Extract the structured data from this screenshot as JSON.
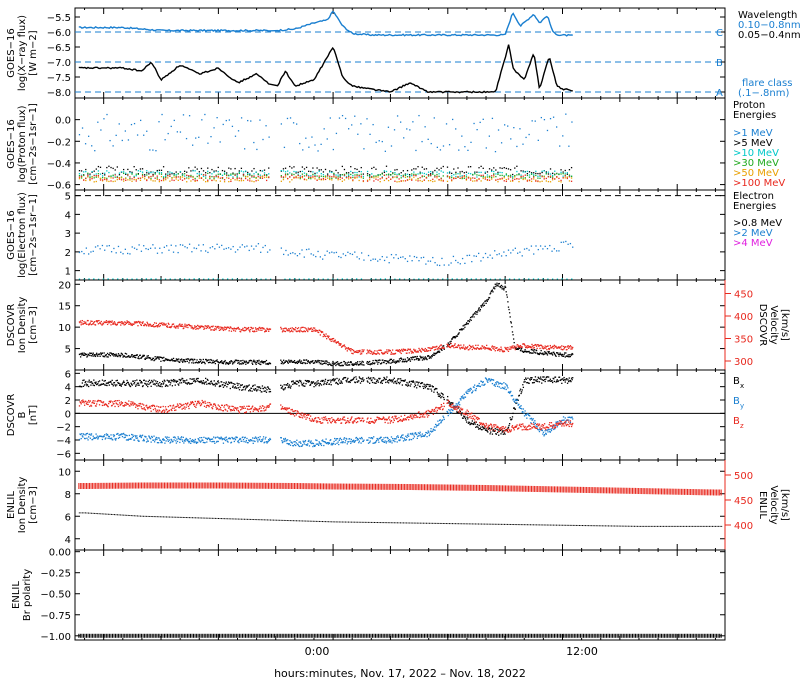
{
  "colors": {
    "black": "#000000",
    "blue": "#1a7fd0",
    "cyan": "#00c8c8",
    "green": "#1faa1f",
    "orange": "#e8a000",
    "red": "#e8281e",
    "magenta": "#e020e0",
    "dashed_blue": "#1a7fd0"
  },
  "footer": {
    "xlabel": "hours:minutes, Nov. 17, 2022 – Nov. 18, 2022"
  },
  "time_axis": {
    "ticks": [
      "0:00",
      "12:00"
    ]
  },
  "chart_data": [
    {
      "type": "line",
      "id": "xray",
      "ylabel_lines": [
        "GOES−16",
        "log(X−ray flux)",
        "[W m−2]"
      ],
      "ylim": [
        -8.2,
        -5.2
      ],
      "ytick_labels": [
        "−5.5",
        "−6.0",
        "−6.5",
        "−7.0",
        "−7.5",
        "−8.0"
      ],
      "ytick_values": [
        -5.5,
        -6.0,
        -6.5,
        -7.0,
        -7.5,
        -8.0
      ],
      "legend_title": "Wavelength",
      "series": [
        {
          "name": "0.10−0.8nm",
          "color": "blue",
          "x": [
            -11.0,
            -9.0,
            -7.0,
            -5.0,
            -3.0,
            -2.0,
            -1.0,
            -0.3,
            0.0,
            0.5,
            1.0,
            2.0,
            4.0,
            6.0,
            8.0,
            9.0,
            9.4,
            9.8,
            10.5,
            10.8,
            11.2,
            11.5,
            11.8,
            12.5
          ],
          "y": [
            -5.85,
            -5.95,
            -5.95,
            -5.95,
            -5.95,
            -5.9,
            -5.7,
            -5.6,
            -5.3,
            -5.8,
            -6.05,
            -6.1,
            -6.1,
            -6.1,
            -6.1,
            -6.1,
            -5.35,
            -5.8,
            -5.4,
            -5.7,
            -5.45,
            -6.0,
            -6.1,
            -6.12
          ]
        },
        {
          "name": "0.05−0.4nm",
          "color": "black",
          "x": [
            -11.0,
            -10.0,
            -9.5,
            -9.0,
            -8.0,
            -7.0,
            -6.0,
            -5.0,
            -4.0,
            -3.0,
            -2.5,
            -2.0,
            -1.0,
            0.0,
            0.5,
            1.0,
            3.0,
            4.0,
            5.0,
            7.0,
            8.5,
            9.2,
            9.4,
            10.0,
            10.5,
            10.8,
            11.3,
            11.7,
            12.0,
            12.5
          ],
          "y": [
            -7.2,
            -7.3,
            -7.0,
            -7.6,
            -7.1,
            -7.4,
            -7.2,
            -7.7,
            -7.4,
            -7.9,
            -7.3,
            -7.8,
            -7.6,
            -6.5,
            -7.5,
            -7.8,
            -8.0,
            -7.7,
            -8.0,
            -8.0,
            -8.0,
            -6.4,
            -7.2,
            -7.6,
            -6.7,
            -7.9,
            -6.8,
            -7.8,
            -7.9,
            -7.95
          ]
        }
      ],
      "thresholds": [
        {
          "label": "C",
          "y": -6.0
        },
        {
          "label": "B",
          "y": -7.0
        },
        {
          "label": "A",
          "y": -8.0
        }
      ],
      "flare_class_label": [
        "flare class",
        "(.1−.8nm)"
      ]
    },
    {
      "type": "scatter",
      "id": "proton",
      "ylabel_lines": [
        "GOES−16",
        "log(Proton flux)",
        "[cm−2s−1sr−1]"
      ],
      "ylim": [
        -0.65,
        0.2
      ],
      "ytick_labels": [
        "0.0",
        "−0.2",
        "−0.4",
        "−0.6"
      ],
      "ytick_values": [
        0.0,
        -0.2,
        -0.4,
        -0.6
      ],
      "legend_title_lines": [
        "Proton",
        "Energies"
      ],
      "series": [
        {
          "name": ">1 MeV",
          "color": "blue"
        },
        {
          "name": ">5 MeV",
          "color": "black"
        },
        {
          "name": ">10 MeV",
          "color": "cyan"
        },
        {
          "name": ">30 MeV",
          "color": "green"
        },
        {
          "name": ">50 MeV",
          "color": "orange"
        },
        {
          "name": ">100 MeV",
          "color": "red"
        }
      ]
    },
    {
      "type": "scatter",
      "id": "electron",
      "ylabel_lines": [
        "GOES−16",
        "log(Electron flux)",
        "[cm−2s−1sr−1]"
      ],
      "ylim": [
        0.5,
        5.3
      ],
      "ytick_labels": [
        "5",
        "4",
        "3",
        "2",
        "1"
      ],
      "ytick_values": [
        5,
        4,
        3,
        2,
        1
      ],
      "legend_title_lines": [
        "Electron",
        "Energies"
      ],
      "series": [
        {
          "name": ">0.8 MeV",
          "color": "black"
        },
        {
          "name": ">2 MeV",
          "color": "blue"
        },
        {
          "name": ">4 MeV",
          "color": "magenta"
        }
      ],
      "dashed_level": 5.0
    },
    {
      "type": "scatter",
      "id": "dscovr_density",
      "ylabel_lines": [
        "DSCOVR",
        "Ion Density",
        "[cm−3]"
      ],
      "ylabel_right_lines": [
        "DSCOVR",
        "Velocity",
        "[km/s]"
      ],
      "ylim": [
        0,
        21
      ],
      "ylim_right": [
        280,
        480
      ],
      "ytick_labels": [
        "20",
        "15",
        "10",
        "5"
      ],
      "ytick_values": [
        20,
        15,
        10,
        5
      ],
      "ytick_labels_right": [
        "450",
        "400",
        "350",
        "300"
      ],
      "ytick_values_right": [
        450,
        400,
        350,
        300
      ],
      "series": [
        {
          "name": "Density",
          "color": "black",
          "x": [
            -11.0,
            -9.0,
            -7.0,
            -5.0,
            -3.0,
            -1.0,
            0.0,
            1.0,
            3.0,
            5.0,
            6.0,
            7.0,
            8.0,
            8.5,
            9.0,
            9.5,
            10.0,
            11.0,
            12.0
          ],
          "y": [
            3.5,
            2.5,
            2.0,
            1.8,
            1.8,
            2.0,
            1.5,
            1.5,
            2.0,
            3.0,
            6.0,
            11.0,
            16.0,
            20.0,
            19.0,
            5.0,
            4.5,
            4.0,
            3.5
          ]
        },
        {
          "name": "Velocity",
          "color": "red",
          "x": [
            -11.0,
            -9.0,
            -7.0,
            -5.0,
            -3.0,
            -1.0,
            0.0,
            1.0,
            3.0,
            5.0,
            6.0,
            7.0,
            8.0,
            9.0,
            10.0,
            11.0,
            12.0
          ],
          "y": [
            385,
            380,
            375,
            370,
            370,
            370,
            345,
            320,
            320,
            325,
            335,
            330,
            330,
            325,
            335,
            330,
            330
          ]
        }
      ]
    },
    {
      "type": "scatter",
      "id": "dscovr_b",
      "ylabel_lines": [
        "DSCOVR",
        "B",
        "[nT]"
      ],
      "ylim": [
        -7,
        6.5
      ],
      "ytick_labels": [
        "6",
        "4",
        "2",
        "0",
        "−2",
        "−4",
        "−6"
      ],
      "ytick_values": [
        6,
        4,
        2,
        0,
        -2,
        -4,
        -6
      ],
      "series": [
        {
          "name": "B",
          "sub": "x",
          "color": "black",
          "x": [
            -11.0,
            -9.0,
            -7.0,
            -5.0,
            -3.0,
            -2.0,
            -1.0,
            1.0,
            3.0,
            5.0,
            6.0,
            7.0,
            8.0,
            9.0,
            10.0,
            11.0,
            12.0
          ],
          "y": [
            4.5,
            4.5,
            5.0,
            4.0,
            3.5,
            4.5,
            4.5,
            5.0,
            5.0,
            4.0,
            2.0,
            -1.0,
            -2.5,
            -3.0,
            5.0,
            5.0,
            5.0
          ]
        },
        {
          "name": "B",
          "sub": "y",
          "color": "blue",
          "x": [
            -11.0,
            -9.0,
            -7.0,
            -5.0,
            -3.0,
            -2.0,
            -1.0,
            1.0,
            3.0,
            5.0,
            6.0,
            7.0,
            8.0,
            9.0,
            10.0,
            11.0,
            12.0
          ],
          "y": [
            -3.5,
            -4.0,
            -4.0,
            -4.0,
            -4.0,
            -4.5,
            -4.5,
            -4.0,
            -4.0,
            -3.0,
            0.0,
            3.0,
            5.0,
            4.0,
            0.0,
            -3.0,
            -1.0
          ]
        },
        {
          "name": "B",
          "sub": "z",
          "color": "red",
          "x": [
            -11.0,
            -9.0,
            -7.0,
            -5.0,
            -3.0,
            -2.0,
            -1.0,
            1.0,
            3.0,
            5.0,
            6.0,
            7.0,
            8.0,
            9.0,
            10.0,
            11.0,
            12.0
          ],
          "y": [
            1.5,
            0.5,
            1.5,
            0.5,
            1.0,
            0.0,
            -1.0,
            -1.0,
            -1.0,
            0.0,
            1.5,
            0.0,
            -2.0,
            -2.5,
            -2.0,
            -2.0,
            -1.5
          ]
        }
      ]
    },
    {
      "type": "line",
      "id": "enlil_density",
      "ylabel_lines": [
        "ENLIL",
        "Ion Density",
        "[cm−3]"
      ],
      "ylabel_right_lines": [
        "ENLIL",
        "Velocity",
        "[km/s]"
      ],
      "ylim": [
        3,
        11
      ],
      "ylim_right": [
        350,
        530
      ],
      "ytick_labels": [
        "10",
        "8",
        "6",
        "4"
      ],
      "ytick_values": [
        10,
        8,
        6,
        4
      ],
      "ytick_labels_right": [
        "500",
        "450",
        "400"
      ],
      "ytick_values_right": [
        500,
        450,
        400
      ],
      "series": [
        {
          "name": "Density",
          "color": "black",
          "x": [
            -13.0,
            -10.0,
            -6.0,
            -2.0,
            0.0,
            4.0,
            8.0,
            12.0,
            16.0,
            20.0
          ],
          "y": [
            6.3,
            6.0,
            5.8,
            5.6,
            5.5,
            5.4,
            5.3,
            5.2,
            5.1,
            5.1
          ]
        },
        {
          "name": "Velocity",
          "color": "red",
          "x": [
            -13.0,
            -10.0,
            -6.0,
            -2.0,
            0.0,
            4.0,
            8.0,
            12.0,
            16.0,
            20.0
          ],
          "y": [
            478,
            479,
            479,
            478,
            477,
            476,
            474,
            471,
            468,
            465
          ]
        }
      ]
    },
    {
      "type": "line",
      "id": "enlil_polarity",
      "ylabel_lines": [
        "ENLIL",
        "Br polarity"
      ],
      "ylim": [
        -1.05,
        0.02
      ],
      "ytick_labels": [
        "0.00",
        "−0.25",
        "−0.50",
        "−0.75",
        "−1.00"
      ],
      "ytick_values": [
        0.0,
        -0.25,
        -0.5,
        -0.75,
        -1.0
      ],
      "series": [
        {
          "name": "Polarity",
          "color": "black",
          "x": [
            -13.0,
            20.0
          ],
          "y": [
            -1.0,
            -1.0
          ]
        }
      ]
    }
  ]
}
